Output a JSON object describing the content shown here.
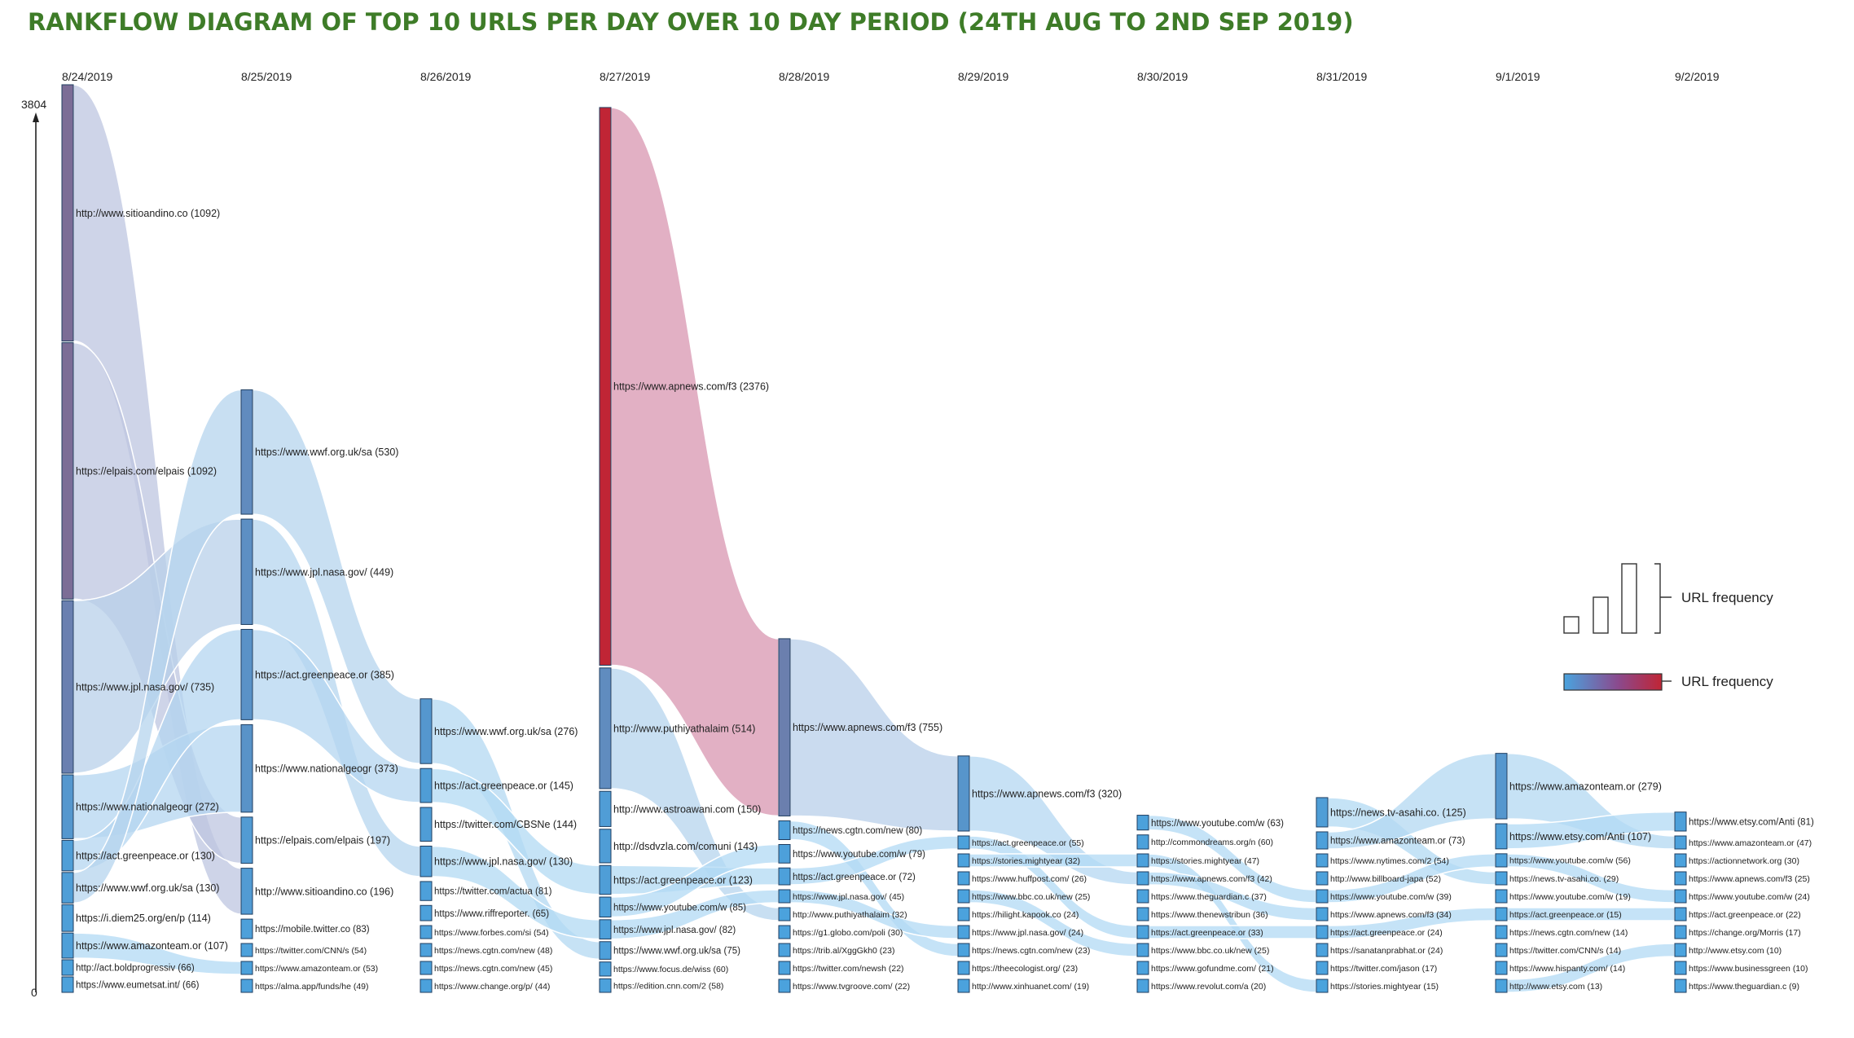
{
  "title": "RANKFLOW DIAGRAM OF TOP 10 URLS PER DAY OVER 10 DAY PERIOD (24TH AUG TO 2ND SEP 2019)",
  "chart_data": {
    "type": "rankflow",
    "y_max_label": "3804",
    "y_min_label": "0",
    "ylim": [
      0,
      3804
    ],
    "days": [
      {
        "date": "8/24/2019",
        "entries": [
          {
            "label": "http://www.sitioandino.co",
            "value": 1092
          },
          {
            "label": "https://elpais.com/elpais",
            "value": 1092
          },
          {
            "label": "https://www.jpl.nasa.gov/",
            "value": 735
          },
          {
            "label": "https://www.nationalgeogr",
            "value": 272
          },
          {
            "label": "https://act.greenpeace.or",
            "value": 130
          },
          {
            "label": "https://www.wwf.org.uk/sa",
            "value": 130
          },
          {
            "label": "https://i.diem25.org/en/p",
            "value": 114
          },
          {
            "label": "https://www.amazonteam.or",
            "value": 107
          },
          {
            "label": "http://act.boldprogressiv",
            "value": 66
          },
          {
            "label": "https://www.eumetsat.int/",
            "value": 66
          }
        ]
      },
      {
        "date": "8/25/2019",
        "entries": [
          {
            "label": "https://www.wwf.org.uk/sa",
            "value": 530
          },
          {
            "label": "https://www.jpl.nasa.gov/",
            "value": 449
          },
          {
            "label": "https://act.greenpeace.or",
            "value": 385
          },
          {
            "label": "https://www.nationalgeogr",
            "value": 373
          },
          {
            "label": "https://elpais.com/elpais",
            "value": 197
          },
          {
            "label": "http://www.sitioandino.co",
            "value": 196
          },
          {
            "label": "https://mobile.twitter.co",
            "value": 83
          },
          {
            "label": "https://twitter.com/CNN/s",
            "value": 54
          },
          {
            "label": "https://www.amazonteam.or",
            "value": 53
          },
          {
            "label": "https://alma.app/funds/he",
            "value": 49
          }
        ]
      },
      {
        "date": "8/26/2019",
        "entries": [
          {
            "label": "https://www.wwf.org.uk/sa",
            "value": 276
          },
          {
            "label": "https://act.greenpeace.or",
            "value": 145
          },
          {
            "label": "https://twitter.com/CBSNe",
            "value": 144
          },
          {
            "label": "https://www.jpl.nasa.gov/",
            "value": 130
          },
          {
            "label": "https://twitter.com/actua",
            "value": 81
          },
          {
            "label": "https://www.riffreporter.",
            "value": 65
          },
          {
            "label": "https://www.forbes.com/si",
            "value": 54
          },
          {
            "label": "https://news.cgtn.com/new",
            "value": 48
          },
          {
            "label": "https://news.cgtn.com/new",
            "value": 45
          },
          {
            "label": "https://www.change.org/p/",
            "value": 44
          }
        ]
      },
      {
        "date": "8/27/2019",
        "entries": [
          {
            "label": "https://www.apnews.com/f3",
            "value": 2376
          },
          {
            "label": "http://www.puthiyathalaim",
            "value": 514
          },
          {
            "label": "http://www.astroawani.com",
            "value": 150
          },
          {
            "label": "http://dsdvzla.com/comuni",
            "value": 143
          },
          {
            "label": "https://act.greenpeace.or",
            "value": 123
          },
          {
            "label": "https://www.youtube.com/w",
            "value": 85
          },
          {
            "label": "https://www.jpl.nasa.gov/",
            "value": 82
          },
          {
            "label": "https://www.wwf.org.uk/sa",
            "value": 75
          },
          {
            "label": "https://www.focus.de/wiss",
            "value": 60
          },
          {
            "label": "https://edition.cnn.com/2",
            "value": 58
          }
        ]
      },
      {
        "date": "8/28/2019",
        "entries": [
          {
            "label": "https://www.apnews.com/f3",
            "value": 755
          },
          {
            "label": "https://news.cgtn.com/new",
            "value": 80
          },
          {
            "label": "https://www.youtube.com/w",
            "value": 79
          },
          {
            "label": "https://act.greenpeace.or",
            "value": 72
          },
          {
            "label": "https://www.jpl.nasa.gov/",
            "value": 45
          },
          {
            "label": "http://www.puthiyathalaim",
            "value": 32
          },
          {
            "label": "https://g1.globo.com/poli",
            "value": 30
          },
          {
            "label": "https://trib.al/XggGkh0",
            "value": 23
          },
          {
            "label": "https://twitter.com/newsh",
            "value": 22
          },
          {
            "label": "https://www.tvgroove.com/",
            "value": 22
          }
        ]
      },
      {
        "date": "8/29/2019",
        "entries": [
          {
            "label": "https://www.apnews.com/f3",
            "value": 320
          },
          {
            "label": "https://act.greenpeace.or",
            "value": 55
          },
          {
            "label": "https://stories.mightyear",
            "value": 32
          },
          {
            "label": "https://www.huffpost.com/",
            "value": 26
          },
          {
            "label": "https://www.bbc.co.uk/new",
            "value": 25
          },
          {
            "label": "https://hilight.kapook.co",
            "value": 24
          },
          {
            "label": "https://www.jpl.nasa.gov/",
            "value": 24
          },
          {
            "label": "https://news.cgtn.com/new",
            "value": 23
          },
          {
            "label": "https://theecologist.org/",
            "value": 23
          },
          {
            "label": "http://www.xinhuanet.com/",
            "value": 19
          }
        ]
      },
      {
        "date": "8/30/2019",
        "entries": [
          {
            "label": "https://www.youtube.com/w",
            "value": 63
          },
          {
            "label": "http://commondreams.org/n",
            "value": 60
          },
          {
            "label": "https://stories.mightyear",
            "value": 47
          },
          {
            "label": "https://www.apnews.com/f3",
            "value": 42
          },
          {
            "label": "https://www.theguardian.c",
            "value": 37
          },
          {
            "label": "https://www.thenewstribun",
            "value": 36
          },
          {
            "label": "https://act.greenpeace.or",
            "value": 33
          },
          {
            "label": "https://www.bbc.co.uk/new",
            "value": 25
          },
          {
            "label": "https://www.gofundme.com/",
            "value": 21
          },
          {
            "label": "https://www.revolut.com/a",
            "value": 20
          }
        ]
      },
      {
        "date": "8/31/2019",
        "entries": [
          {
            "label": "https://news.tv-asahi.co.",
            "value": 125
          },
          {
            "label": "https://www.amazonteam.or",
            "value": 73
          },
          {
            "label": "https://www.nytimes.com/2",
            "value": 54
          },
          {
            "label": "http://www.billboard-japa",
            "value": 52
          },
          {
            "label": "https://www.youtube.com/w",
            "value": 39
          },
          {
            "label": "https://www.apnews.com/f3",
            "value": 34
          },
          {
            "label": "https://act.greenpeace.or",
            "value": 24
          },
          {
            "label": "https://sanatanprabhat.or",
            "value": 24
          },
          {
            "label": "https://twitter.com/jason",
            "value": 17
          },
          {
            "label": "https://stories.mightyear",
            "value": 15
          }
        ]
      },
      {
        "date": "9/1/2019",
        "entries": [
          {
            "label": "https://www.amazonteam.or",
            "value": 279
          },
          {
            "label": "https://www.etsy.com/Anti",
            "value": 107
          },
          {
            "label": "https://www.youtube.com/w",
            "value": 56
          },
          {
            "label": "https://news.tv-asahi.co.",
            "value": 29
          },
          {
            "label": "https://www.youtube.com/w",
            "value": 19
          },
          {
            "label": "https://act.greenpeace.or",
            "value": 15
          },
          {
            "label": "https://news.cgtn.com/new",
            "value": 14
          },
          {
            "label": "https://twitter.com/CNN/s",
            "value": 14
          },
          {
            "label": "https://www.hispanty.com/",
            "value": 14
          },
          {
            "label": "http://www.etsy.com",
            "value": 13
          }
        ]
      },
      {
        "date": "9/2/2019",
        "entries": [
          {
            "label": "https://www.etsy.com/Anti",
            "value": 81
          },
          {
            "label": "https://www.amazonteam.or",
            "value": 47
          },
          {
            "label": "https://actionnetwork.org",
            "value": 30
          },
          {
            "label": "https://www.apnews.com/f3",
            "value": 25
          },
          {
            "label": "https://www.youtube.com/w",
            "value": 24
          },
          {
            "label": "https://act.greenpeace.or",
            "value": 22
          },
          {
            "label": "https://change.org/Morris",
            "value": 17
          },
          {
            "label": "http://www.etsy.com",
            "value": 10
          },
          {
            "label": "https://www.businessgreen",
            "value": 10
          },
          {
            "label": "https://www.theguardian.c",
            "value": 9
          }
        ]
      }
    ],
    "legend": {
      "size_label": "URL frequency",
      "color_label": "URL frequency",
      "placement": "right",
      "color_low": "#4aa3de",
      "color_high": "#c02535"
    },
    "colors": {
      "node_low": "#4aa3de",
      "node_high": "#c02535",
      "flow_blue": "#bfe0f6",
      "flow_red": "#dda0b6"
    }
  }
}
